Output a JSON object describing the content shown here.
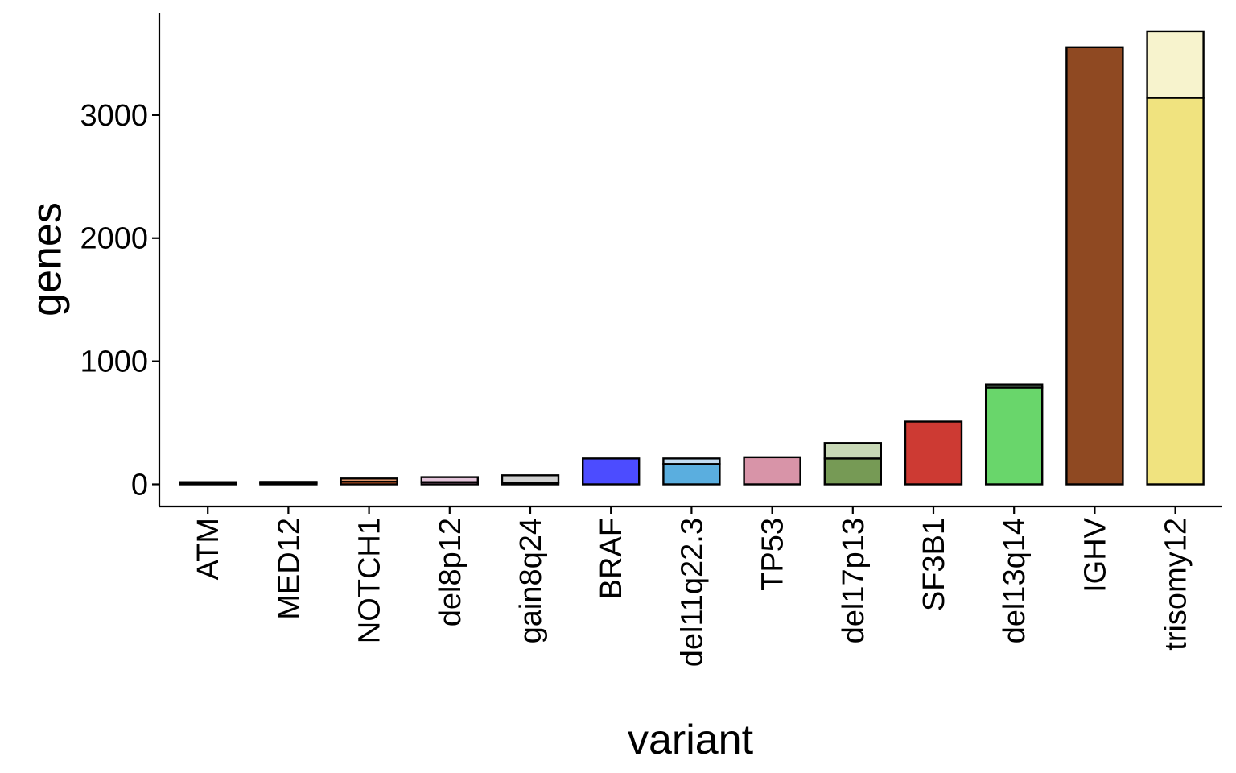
{
  "chart_data": {
    "type": "bar",
    "stacked": true,
    "title": "",
    "xlabel": "variant",
    "ylabel": "genes",
    "ylim": [
      -180,
      3830
    ],
    "yticks": [
      0,
      1000,
      2000,
      3000
    ],
    "ytick_labels": [
      "0",
      "1000",
      "2000",
      "3000"
    ],
    "grid": false,
    "legend": "none",
    "categories": [
      "ATM",
      "MED12",
      "NOTCH1",
      "del8p12",
      "gain8q24",
      "BRAF",
      "del11q22.3",
      "TP53",
      "del17p13",
      "SF3B1",
      "del13q14",
      "IGHV",
      "trisomy12"
    ],
    "series": [
      {
        "values": [
          8,
          10,
          22,
          18,
          15,
          210,
          165,
          220,
          210,
          510,
          785,
          3550,
          3140
        ],
        "colors": [
          "#b8bd55",
          "#6e4a2e",
          "#e0642a",
          "#c88ab2",
          "#9a9a9a",
          "#4c4cff",
          "#5aaedf",
          "#d894a8",
          "#769a55",
          "#cd3a33",
          "#69d66b",
          "#8f4922",
          "#f0e37f"
        ]
      },
      {
        "values": [
          10,
          10,
          25,
          40,
          58,
          0,
          45,
          0,
          125,
          0,
          25,
          0,
          540
        ],
        "colors": [
          "#d4d88a",
          "#a88a6e",
          "#f0a074",
          "#e4c4da",
          "#d0d0d0",
          "#a6a6ff",
          "#c2dcf2",
          "#ecc8d4",
          "#c8d8b6",
          "#e89c98",
          "#b4eab6",
          "#c6a48c",
          "#f7f3cd"
        ]
      }
    ]
  }
}
